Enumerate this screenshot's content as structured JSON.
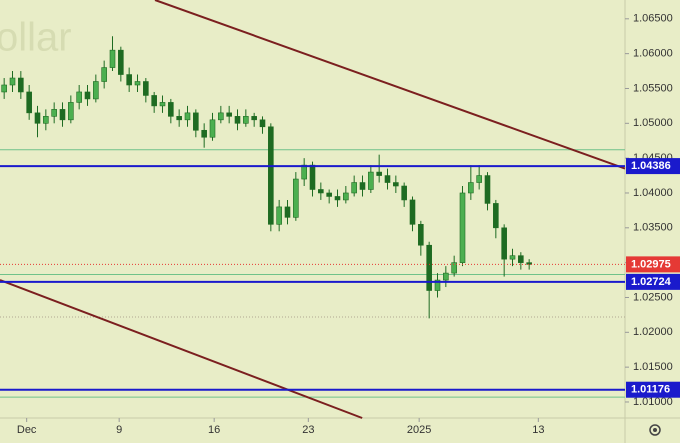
{
  "chart_data": {
    "type": "candlestick",
    "watermark": "ollar",
    "up_color": "#4caf50",
    "down_color": "#1e6b22",
    "x": [
      0,
      1,
      2,
      3,
      4,
      5,
      6,
      7,
      8,
      9,
      10,
      11,
      12,
      13,
      14,
      15,
      16,
      17,
      18,
      19,
      20,
      21,
      22,
      23,
      24,
      25,
      26,
      27,
      28,
      29,
      30,
      31,
      32,
      33,
      34,
      35,
      36,
      37,
      38,
      39,
      40,
      41,
      42,
      43,
      44,
      45,
      46,
      47,
      48,
      49,
      50,
      51,
      52,
      53,
      54,
      55,
      56,
      57,
      58,
      59,
      60,
      61,
      62,
      63
    ],
    "open": [
      1.0545,
      1.0555,
      1.0565,
      1.0545,
      1.0515,
      1.05,
      1.051,
      1.052,
      1.0505,
      1.053,
      1.0545,
      1.0535,
      1.056,
      1.058,
      1.0605,
      1.057,
      1.0555,
      1.056,
      1.054,
      1.0525,
      1.053,
      1.051,
      1.0505,
      1.0515,
      1.049,
      1.048,
      1.0505,
      1.0515,
      1.051,
      1.05,
      1.051,
      1.0505,
      1.0495,
      1.0355,
      1.038,
      1.0365,
      1.042,
      1.044,
      1.0405,
      1.04,
      1.0395,
      1.039,
      1.04,
      1.0415,
      1.0405,
      1.043,
      1.0425,
      1.0415,
      1.041,
      1.039,
      1.0355,
      1.0325,
      1.026,
      1.0275,
      1.0285,
      1.03,
      1.04,
      1.0415,
      1.0425,
      1.0385,
      1.035,
      1.0305,
      1.031,
      1.03
    ],
    "high": [
      1.0565,
      1.0575,
      1.0575,
      1.0555,
      1.0525,
      1.052,
      1.053,
      1.053,
      1.054,
      1.0555,
      1.0555,
      1.057,
      1.059,
      1.0625,
      1.061,
      1.058,
      1.057,
      1.0565,
      1.0545,
      1.054,
      1.0535,
      1.052,
      1.0525,
      1.052,
      1.05,
      1.0515,
      1.0525,
      1.0525,
      1.052,
      1.052,
      1.0515,
      1.051,
      1.05,
      1.039,
      1.039,
      1.043,
      1.045,
      1.0445,
      1.0415,
      1.0405,
      1.0405,
      1.041,
      1.0425,
      1.0425,
      1.044,
      1.0455,
      1.0435,
      1.0425,
      1.0415,
      1.0395,
      1.036,
      1.033,
      1.0285,
      1.0295,
      1.031,
      1.041,
      1.044,
      1.044,
      1.043,
      1.039,
      1.0355,
      1.032,
      1.0315,
      1.0305
    ],
    "low": [
      1.0535,
      1.0545,
      1.0535,
      1.0505,
      1.048,
      1.049,
      1.05,
      1.0495,
      1.05,
      1.052,
      1.0525,
      1.053,
      1.055,
      1.0575,
      1.056,
      1.0545,
      1.0545,
      1.053,
      1.0515,
      1.0515,
      1.05,
      1.0495,
      1.0495,
      1.048,
      1.0465,
      1.0475,
      1.05,
      1.05,
      1.049,
      1.0495,
      1.0495,
      1.0485,
      1.0345,
      1.0345,
      1.0355,
      1.036,
      1.041,
      1.0395,
      1.039,
      1.0385,
      1.038,
      1.0385,
      1.0395,
      1.0395,
      1.04,
      1.0415,
      1.0405,
      1.04,
      1.038,
      1.0345,
      1.031,
      1.022,
      1.025,
      1.0265,
      1.028,
      1.0295,
      1.039,
      1.0405,
      1.0375,
      1.0335,
      1.028,
      1.0295,
      1.029,
      1.029
    ],
    "close": [
      1.0555,
      1.0565,
      1.0545,
      1.0515,
      1.05,
      1.051,
      1.052,
      1.0505,
      1.053,
      1.0545,
      1.0535,
      1.056,
      1.058,
      1.0605,
      1.057,
      1.0555,
      1.056,
      1.054,
      1.0525,
      1.053,
      1.051,
      1.0505,
      1.0515,
      1.049,
      1.048,
      1.0505,
      1.0515,
      1.051,
      1.05,
      1.051,
      1.0505,
      1.0495,
      1.0355,
      1.038,
      1.0365,
      1.042,
      1.044,
      1.0405,
      1.04,
      1.0395,
      1.039,
      1.04,
      1.0415,
      1.0405,
      1.043,
      1.0425,
      1.0415,
      1.041,
      1.039,
      1.0355,
      1.0325,
      1.026,
      1.0275,
      1.0285,
      1.03,
      1.04,
      1.0415,
      1.0425,
      1.0385,
      1.035,
      1.0305,
      1.031,
      1.03,
      1.02975
    ],
    "xlim": [
      -0.5,
      74.5
    ],
    "ylim": [
      1.0077,
      1.0677
    ],
    "xticks": [
      {
        "value": 2.7,
        "label": "Dec"
      },
      {
        "value": 13.8,
        "label": "9"
      },
      {
        "value": 25.2,
        "label": "16"
      },
      {
        "value": 36.5,
        "label": "23"
      },
      {
        "value": 49.8,
        "label": "2025"
      },
      {
        "value": 64.1,
        "label": "13"
      }
    ],
    "yticks": [
      {
        "value": 1.065,
        "label": "1.06500"
      },
      {
        "value": 1.06,
        "label": "1.06000"
      },
      {
        "value": 1.055,
        "label": "1.05500"
      },
      {
        "value": 1.05,
        "label": "1.05000"
      },
      {
        "value": 1.045,
        "label": "1.04500"
      },
      {
        "value": 1.04,
        "label": "1.04000"
      },
      {
        "value": 1.035,
        "label": "1.03500"
      },
      {
        "value": 1.03,
        "label": "1.03000"
      },
      {
        "value": 1.025,
        "label": "1.02500"
      },
      {
        "value": 1.02,
        "label": "1.02000"
      },
      {
        "value": 1.015,
        "label": "1.01500"
      },
      {
        "value": 1.01,
        "label": "1.01000"
      }
    ],
    "guide_lines": {
      "color": "#6fc28a",
      "values": [
        1.0462,
        1.0283,
        1.0107
      ]
    },
    "dotted_lines": {
      "color": "#b0a890",
      "values": [
        1.0222
      ]
    },
    "levels": [
      {
        "value": 1.04386,
        "color": "#1a1acc"
      },
      {
        "value": 1.02724,
        "color": "#1a1acc"
      },
      {
        "value": 1.01176,
        "color": "#1a1acc"
      }
    ],
    "price": {
      "value": 1.02975,
      "color": "#e53935"
    },
    "trendlines": [
      {
        "color": "#7b1f1f",
        "x": [
          18.1,
          74.5
        ],
        "y": [
          1.0677,
          1.0435
        ]
      },
      {
        "color": "#7b1f1f",
        "x": [
          -0.5,
          42.96
        ],
        "y": [
          1.0275,
          1.0077
        ]
      }
    ]
  }
}
